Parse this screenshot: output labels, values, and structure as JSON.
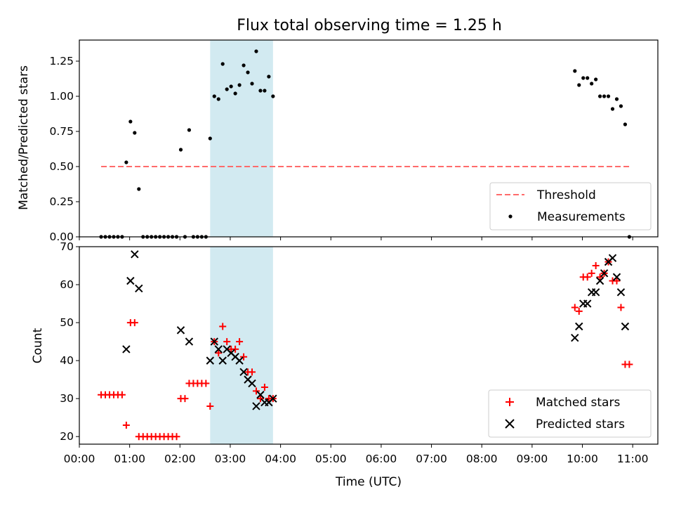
{
  "chart_data": [
    {
      "type": "scatter",
      "title": "Flux total observing time = 1.25 h",
      "ylabel": "Matched/Predicted stars",
      "xlabel": "",
      "xlim": [
        "00:00",
        "11:30"
      ],
      "ylim": [
        0,
        1.4
      ],
      "yticks": [
        0.0,
        0.25,
        0.5,
        0.75,
        1.0,
        1.25
      ],
      "ytick_labels": [
        "0.00",
        "0.25",
        "0.50",
        "0.75",
        "1.00",
        "1.25"
      ],
      "highlight_span": {
        "x": [
          "02:36",
          "03:51"
        ],
        "color": "#add8e6"
      },
      "threshold": {
        "name": "Threshold",
        "value": 0.5,
        "x": [
          "00:26",
          "10:58"
        ],
        "color": "#ff6b6b",
        "style": "dashed"
      },
      "series": [
        {
          "name": "Measurements",
          "color": "#000000",
          "marker": "dot",
          "x": [
            "00:26",
            "00:31",
            "00:36",
            "00:41",
            "00:46",
            "00:51",
            "00:56",
            "01:01",
            "01:06",
            "01:11",
            "01:16",
            "01:21",
            "01:26",
            "01:31",
            "01:36",
            "01:41",
            "01:46",
            "01:51",
            "01:56",
            "02:01",
            "02:06",
            "02:11",
            "02:16",
            "02:21",
            "02:26",
            "02:31",
            "02:36",
            "02:41",
            "02:46",
            "02:51",
            "02:56",
            "03:01",
            "03:06",
            "03:11",
            "03:16",
            "03:21",
            "03:26",
            "03:31",
            "03:36",
            "03:41",
            "03:46",
            "03:51",
            "09:51",
            "09:56",
            "10:01",
            "10:06",
            "10:11",
            "10:16",
            "10:21",
            "10:26",
            "10:31",
            "10:36",
            "10:41",
            "10:46",
            "10:51",
            "10:56"
          ],
          "y": [
            0,
            0,
            0,
            0,
            0,
            0,
            0.53,
            0.82,
            0.74,
            0.34,
            0,
            0,
            0,
            0,
            0,
            0,
            0,
            0,
            0,
            0.62,
            0,
            0.76,
            0,
            0,
            0,
            0,
            0.7,
            1.0,
            0.98,
            1.23,
            1.05,
            1.07,
            1.02,
            1.08,
            1.22,
            1.17,
            1.09,
            1.32,
            1.04,
            1.04,
            1.14,
            1.0,
            1.18,
            1.08,
            1.13,
            1.13,
            1.09,
            1.12,
            1.0,
            1.0,
            1.0,
            0.91,
            0.98,
            0.93,
            0.8,
            0
          ]
        }
      ],
      "legend": {
        "placement": "lower-right",
        "entries": [
          "Threshold",
          "Measurements"
        ]
      }
    },
    {
      "type": "scatter",
      "title": "",
      "ylabel": "Count",
      "xlabel": "Time (UTC)",
      "xlim": [
        "00:00",
        "11:30"
      ],
      "ylim": [
        18,
        70
      ],
      "yticks": [
        20,
        30,
        40,
        50,
        60,
        70
      ],
      "xticks": [
        "00:00",
        "01:00",
        "02:00",
        "03:00",
        "04:00",
        "05:00",
        "06:00",
        "07:00",
        "08:00",
        "09:00",
        "10:00",
        "11:00"
      ],
      "highlight_span": {
        "x": [
          "02:36",
          "03:51"
        ],
        "color": "#add8e6"
      },
      "series": [
        {
          "name": "Matched stars",
          "color": "#ff0000",
          "marker": "plus",
          "x": [
            "00:26",
            "00:31",
            "00:36",
            "00:41",
            "00:46",
            "00:51",
            "00:56",
            "01:01",
            "01:06",
            "01:11",
            "01:16",
            "01:21",
            "01:26",
            "01:31",
            "01:36",
            "01:41",
            "01:46",
            "01:51",
            "01:56",
            "02:01",
            "02:06",
            "02:11",
            "02:16",
            "02:21",
            "02:26",
            "02:31",
            "02:36",
            "02:41",
            "02:46",
            "02:51",
            "02:56",
            "03:01",
            "03:06",
            "03:11",
            "03:16",
            "03:21",
            "03:26",
            "03:31",
            "03:36",
            "03:41",
            "03:46",
            "03:51",
            "09:51",
            "09:56",
            "10:01",
            "10:06",
            "10:11",
            "10:16",
            "10:21",
            "10:26",
            "10:31",
            "10:36",
            "10:41",
            "10:46",
            "10:51",
            "10:56"
          ],
          "y": [
            31,
            31,
            31,
            31,
            31,
            31,
            23,
            50,
            50,
            20,
            20,
            20,
            20,
            20,
            20,
            20,
            20,
            20,
            20,
            30,
            30,
            34,
            34,
            34,
            34,
            34,
            28,
            45,
            42,
            49,
            45,
            43,
            43,
            45,
            41,
            37,
            37,
            32,
            30,
            33,
            30,
            30,
            54,
            53,
            62,
            62,
            63,
            65,
            62,
            63,
            66,
            61,
            61,
            54,
            39,
            39
          ]
        },
        {
          "name": "Predicted stars",
          "color": "#000000",
          "marker": "x",
          "x": [
            "00:56",
            "01:01",
            "01:06",
            "01:11",
            "02:01",
            "02:11",
            "02:36",
            "02:41",
            "02:46",
            "02:51",
            "02:56",
            "03:01",
            "03:06",
            "03:11",
            "03:16",
            "03:21",
            "03:26",
            "03:31",
            "03:36",
            "03:41",
            "03:46",
            "03:51",
            "09:51",
            "09:56",
            "10:01",
            "10:06",
            "10:11",
            "10:16",
            "10:21",
            "10:26",
            "10:31",
            "10:36",
            "10:41",
            "10:46",
            "10:51"
          ],
          "y": [
            43,
            61,
            68,
            59,
            48,
            45,
            40,
            45,
            43,
            40,
            43,
            42,
            41,
            40,
            37,
            35,
            34,
            28,
            31,
            29,
            29,
            30,
            46,
            49,
            55,
            55,
            58,
            58,
            61,
            63,
            66,
            67,
            62,
            58,
            49
          ]
        }
      ],
      "legend": {
        "placement": "lower-right",
        "entries": [
          "Matched stars",
          "Predicted stars"
        ]
      }
    }
  ]
}
